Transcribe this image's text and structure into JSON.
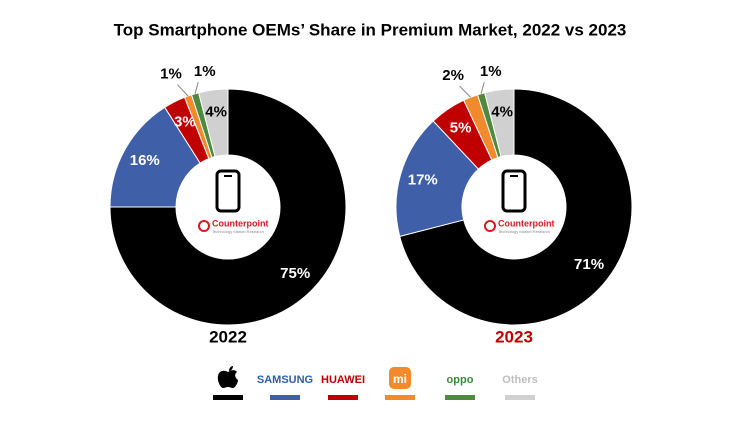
{
  "title": "Top Smartphone OEMs’ Share in Premium Market, 2022 vs 2023",
  "watermark": {
    "name": "Counterpoint",
    "tagline": "Technology Market Research"
  },
  "legend": {
    "labels": [
      null,
      "SAMSUNG",
      "HUAWEI",
      "mi",
      "oppo",
      "Others"
    ],
    "text_colors": [
      "#000000",
      "#2e5ea8",
      "#c00000",
      "#ffffff",
      "#3a8a3a",
      "#bdbdbd"
    ],
    "badge": [
      false,
      false,
      false,
      true,
      false,
      false
    ]
  },
  "chart_data": [
    {
      "type": "pie",
      "title": "2022",
      "title_color": "#000000",
      "values": [
        75,
        16,
        3,
        1,
        1,
        4
      ],
      "value_labels": [
        "75%",
        "16%",
        "3%",
        "1%",
        "1%",
        "4%"
      ],
      "colors": [
        "#000000",
        "#3f5fa8",
        "#c00000",
        "#f28a2c",
        "#4e8a3e",
        "#d0d0d0"
      ],
      "label_colors": [
        "#ffffff",
        "#ffffff",
        "#ffffff",
        "#000000",
        "#000000",
        "#000000"
      ]
    },
    {
      "type": "pie",
      "title": "2023",
      "title_color": "#c00000",
      "values": [
        71,
        17,
        5,
        2,
        1,
        4
      ],
      "value_labels": [
        "71%",
        "17%",
        "5%",
        "2%",
        "1%",
        "4%"
      ],
      "colors": [
        "#000000",
        "#3f5fa8",
        "#c00000",
        "#f28a2c",
        "#4e8a3e",
        "#d0d0d0"
      ],
      "label_colors": [
        "#ffffff",
        "#ffffff",
        "#ffffff",
        "#000000",
        "#000000",
        "#000000"
      ]
    }
  ]
}
